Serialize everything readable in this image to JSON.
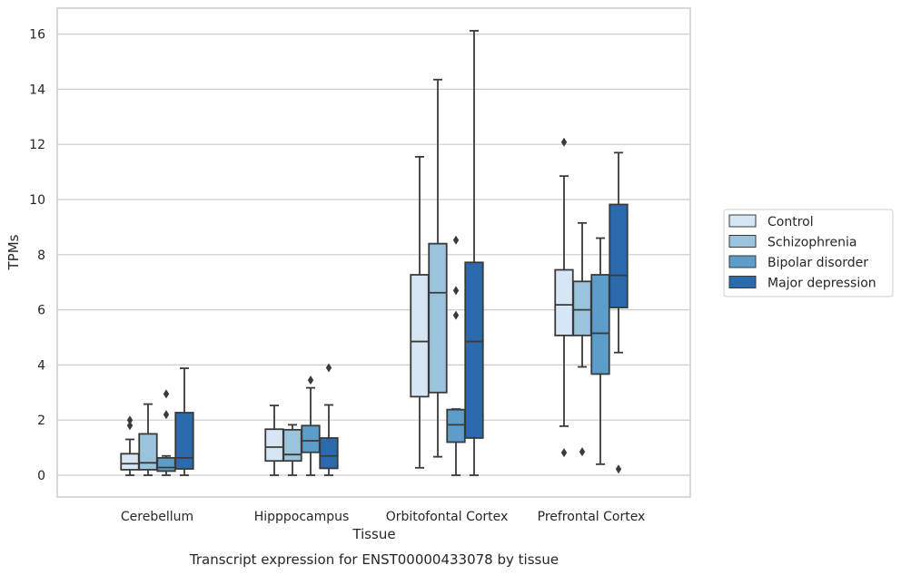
{
  "chart_data": {
    "type": "box",
    "title": "Transcript expression for ENST00000433078 by tissue",
    "xlabel": "Tissue",
    "ylabel": "TPMs",
    "ylim": [
      -0.8,
      16.9
    ],
    "yticks": [
      0,
      2,
      4,
      6,
      8,
      10,
      12,
      14,
      16
    ],
    "grid": true,
    "legend_position": "right",
    "categories": [
      "Cerebellum",
      "Hipppocampus",
      "Orbitofontal Cortex",
      "Prefrontal Cortex"
    ],
    "series": [
      {
        "name": "Control",
        "color": "#d7e6f4",
        "boxes": [
          {
            "whislo": 0.0,
            "q1": 0.2,
            "med": 0.42,
            "q3": 0.78,
            "whishi": 1.3,
            "fliers": [
              1.8,
              2.0
            ]
          },
          {
            "whislo": 0.0,
            "q1": 0.52,
            "med": 1.02,
            "q3": 1.67,
            "whishi": 2.53,
            "fliers": []
          },
          {
            "whislo": 0.27,
            "q1": 2.85,
            "med": 4.85,
            "q3": 7.27,
            "whishi": 11.55,
            "fliers": []
          },
          {
            "whislo": 1.78,
            "q1": 5.07,
            "med": 6.18,
            "q3": 7.45,
            "whishi": 10.85,
            "fliers": [
              0.82,
              12.08
            ]
          }
        ]
      },
      {
        "name": "Schizophrenia",
        "color": "#9ac3dc",
        "boxes": [
          {
            "whislo": 0.0,
            "q1": 0.2,
            "med": 0.45,
            "q3": 1.5,
            "whishi": 2.58,
            "fliers": []
          },
          {
            "whislo": 0.0,
            "q1": 0.52,
            "med": 0.75,
            "q3": 1.65,
            "whishi": 1.83,
            "fliers": []
          },
          {
            "whislo": 0.67,
            "q1": 3.0,
            "med": 6.62,
            "q3": 8.4,
            "whishi": 14.35,
            "fliers": []
          },
          {
            "whislo": 3.93,
            "q1": 5.07,
            "med": 6.0,
            "q3": 7.03,
            "whishi": 9.15,
            "fliers": [
              0.85
            ]
          }
        ]
      },
      {
        "name": "Bipolar disorder",
        "color": "#5c9ec9",
        "boxes": [
          {
            "whislo": 0.0,
            "q1": 0.15,
            "med": 0.28,
            "q3": 0.63,
            "whishi": 0.7,
            "fliers": [
              2.2,
              2.95
            ]
          },
          {
            "whislo": 0.0,
            "q1": 0.83,
            "med": 1.25,
            "q3": 1.8,
            "whishi": 3.17,
            "fliers": [
              3.45
            ]
          },
          {
            "whislo": 0.0,
            "q1": 1.2,
            "med": 1.83,
            "q3": 2.38,
            "whishi": 2.4,
            "fliers": [
              5.8,
              6.7,
              8.53
            ]
          },
          {
            "whislo": 0.4,
            "q1": 3.67,
            "med": 5.15,
            "q3": 7.27,
            "whishi": 8.6,
            "fliers": []
          }
        ]
      },
      {
        "name": "Major depression",
        "color": "#2a6aad",
        "boxes": [
          {
            "whislo": 0.0,
            "q1": 0.23,
            "med": 0.63,
            "q3": 2.27,
            "whishi": 3.88,
            "fliers": []
          },
          {
            "whislo": 0.0,
            "q1": 0.25,
            "med": 0.7,
            "q3": 1.35,
            "whishi": 2.55,
            "fliers": [
              3.9
            ]
          },
          {
            "whislo": 0.0,
            "q1": 1.35,
            "med": 4.85,
            "q3": 7.72,
            "whishi": 16.12,
            "fliers": []
          },
          {
            "whislo": 4.45,
            "q1": 6.08,
            "med": 7.25,
            "q3": 9.82,
            "whishi": 11.7,
            "fliers": [
              0.22
            ]
          }
        ]
      }
    ]
  }
}
